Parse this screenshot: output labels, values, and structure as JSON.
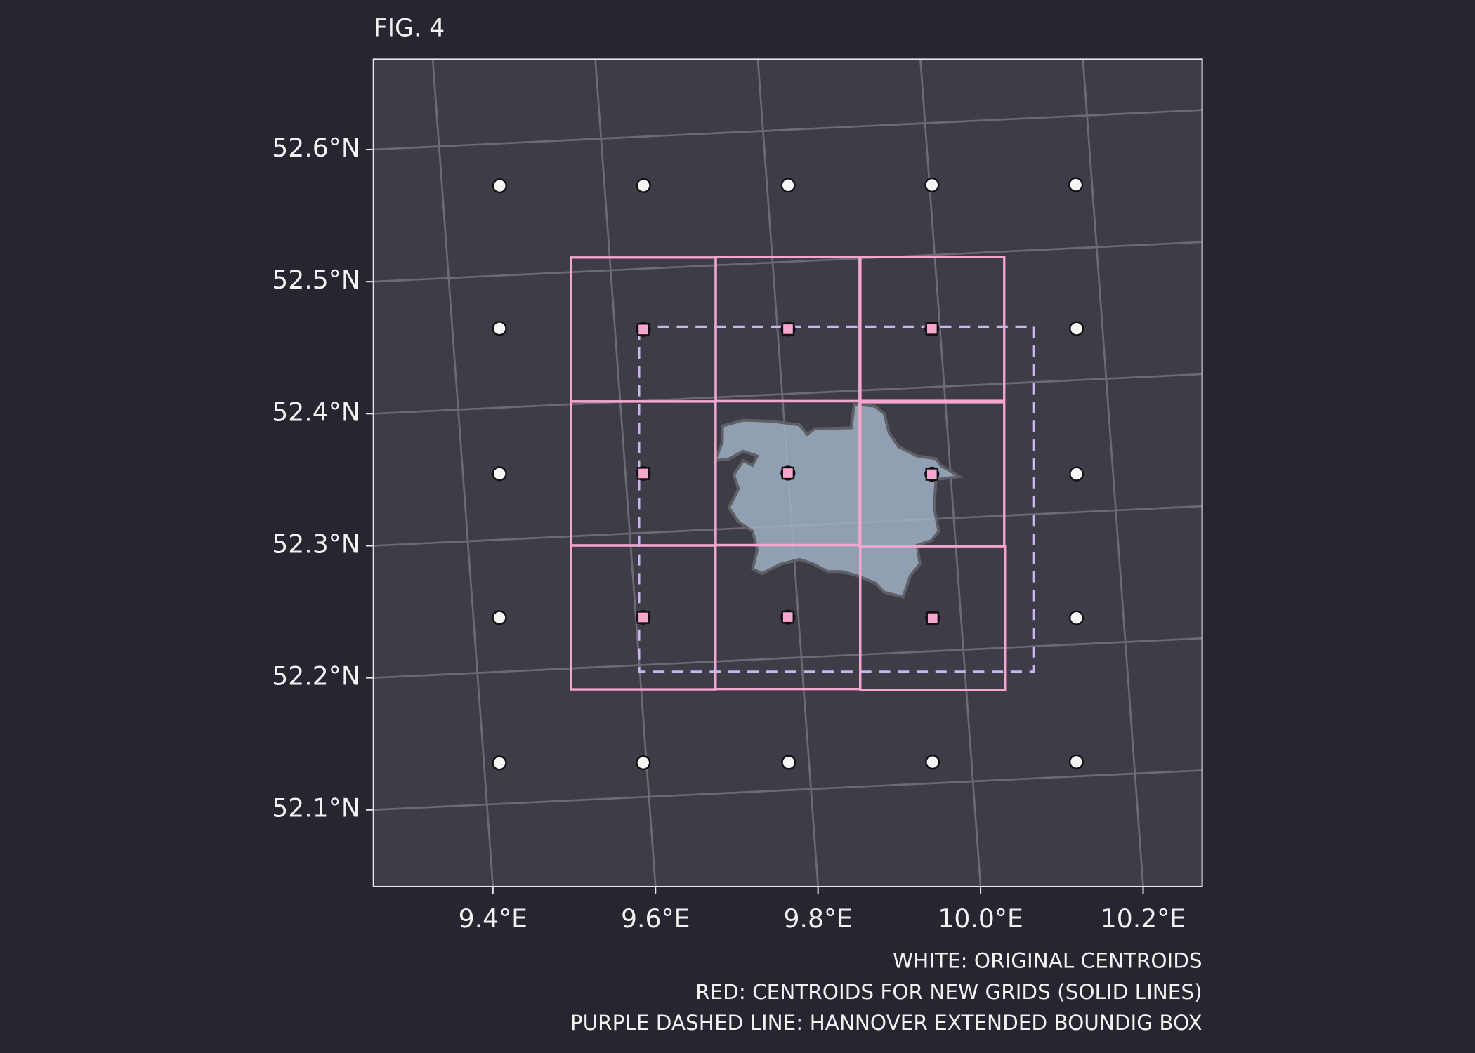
{
  "chart_data": {
    "type": "map",
    "title": "FIG. 4",
    "grid": true,
    "xticks": [
      {
        "value": 9.4,
        "label": "9.4°E"
      },
      {
        "value": 9.6,
        "label": "9.6°E"
      },
      {
        "value": 9.8,
        "label": "9.8°E"
      },
      {
        "value": 10.0,
        "label": "10.0°E"
      },
      {
        "value": 10.2,
        "label": "10.2°E"
      }
    ],
    "yticks": [
      {
        "value": 52.1,
        "label": "52.1°N"
      },
      {
        "value": 52.2,
        "label": "52.2°N"
      },
      {
        "value": 52.3,
        "label": "52.3°N"
      },
      {
        "value": 52.4,
        "label": "52.4°N"
      },
      {
        "value": 52.5,
        "label": "52.5°N"
      },
      {
        "value": 52.6,
        "label": "52.6°N"
      }
    ],
    "original_centroids": {
      "color": "#f5f5f5",
      "lon": [
        9.471,
        9.648,
        9.826,
        10.003,
        10.18,
        9.458,
        9.635,
        9.813,
        9.99,
        10.168,
        9.445,
        9.622,
        9.8,
        9.977,
        10.155,
        9.432,
        9.609,
        9.787,
        9.965,
        10.142,
        9.419,
        9.596,
        9.775,
        9.952,
        10.129
      ],
      "lat": [
        52.568,
        52.563,
        52.558,
        52.553,
        52.548,
        52.46,
        52.454,
        52.449,
        52.444,
        52.439,
        52.35,
        52.345,
        52.34,
        52.334,
        52.329,
        52.241,
        52.236,
        52.231,
        52.225,
        52.22,
        52.131,
        52.126,
        52.121,
        52.116,
        52.111
      ]
    },
    "new_centroids": {
      "color": "#f4a6cf",
      "lon": [
        9.635,
        9.813,
        9.99,
        9.622,
        9.8,
        9.977,
        9.609,
        9.787,
        9.965
      ],
      "lat": [
        52.454,
        52.449,
        52.444,
        52.345,
        52.34,
        52.334,
        52.236,
        52.231,
        52.225
      ]
    },
    "bounding_box": {
      "color": "#c9b6f0",
      "lon": [
        9.599,
        10.116
      ],
      "lat": [
        52.195,
        52.442
      ]
    },
    "annotations": [
      "WHITE: ORIGINAL CENTROIDS",
      "RED: CENTROIDS FOR NEW GRIDS (SOLID LINES)",
      "PURPLE DASHED LINE: HANNOVER EXTENDED BOUNDIG BOX"
    ]
  }
}
